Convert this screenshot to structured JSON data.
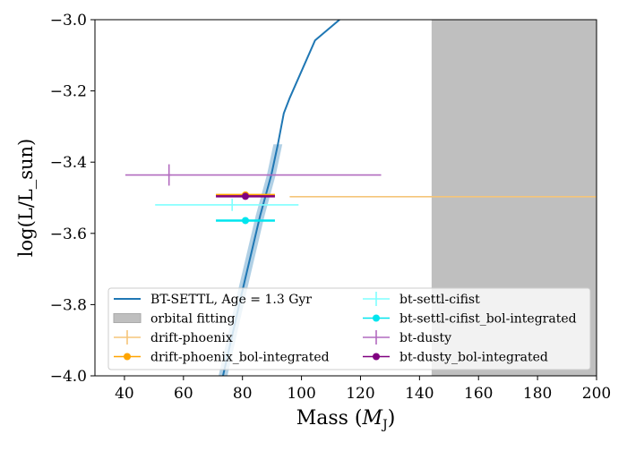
{
  "chart_data": {
    "type": "scatter",
    "title": "",
    "xlabel": "Mass (M_J)",
    "ylabel": "log(L/L_sun)",
    "xlim": [
      30,
      200
    ],
    "ylim": [
      -4.0,
      -3.0
    ],
    "xticks": [
      40,
      60,
      80,
      100,
      120,
      140,
      160,
      180,
      200
    ],
    "yticks": [
      -4.0,
      -3.8,
      -3.6,
      -3.4,
      -3.2,
      -3.0
    ],
    "xtick_labels": [
      "40",
      "60",
      "80",
      "100",
      "120",
      "140",
      "160",
      "180",
      "200"
    ],
    "ytick_labels": [
      "−4.0",
      "−3.8",
      "−3.6",
      "−3.4",
      "−3.2",
      "−3.0"
    ],
    "legend_placement": "lower-center",
    "model_curve": {
      "name": "BT-SETTL, Age = 1.3 Gyr",
      "color": "#1f77b4",
      "mass": [
        73.4,
        80,
        86,
        89.8,
        92,
        94.0,
        96,
        104.6,
        112.9
      ],
      "logL": [
        -4.0,
        -3.76,
        -3.55,
        -3.435,
        -3.35,
        -3.263,
        -3.22,
        -3.058,
        -3.0
      ],
      "band_halfwidth_mass": 1.5
    },
    "orbital_fitting": {
      "name": "orbital fitting",
      "color": "#bfbfbf",
      "mass_range": [
        144.1,
        200
      ]
    },
    "series": [
      {
        "name": "drift-phoenix",
        "color": "#f5c57a",
        "marker": "+",
        "mass": 148,
        "mass_err": [
          52,
          52
        ],
        "logL": -3.497,
        "logL_err": 0.0
      },
      {
        "name": "drift-phoenix_bol-integrated",
        "color": "#ffa500",
        "marker": "o",
        "mass": 81,
        "mass_err": [
          10,
          10
        ],
        "logL": -3.492,
        "logL_err": 0.0
      },
      {
        "name": "bt-settl-cifist",
        "color": "#7fffff",
        "marker": "+",
        "mass": 76.5,
        "mass_err": [
          26.1,
          22.5
        ],
        "logL": -3.52,
        "logL_err": 0.017
      },
      {
        "name": "bt-settl-cifist_bol-integrated",
        "color": "#00e5ee",
        "marker": "o",
        "mass": 81,
        "mass_err": [
          10,
          10
        ],
        "logL": -3.564,
        "logL_err": 0.0
      },
      {
        "name": "bt-dusty",
        "color": "#b26bbf",
        "marker": "+",
        "mass": 55.1,
        "mass_err": [
          14.8,
          71.9
        ],
        "logL": -3.436,
        "logL_err": 0.03
      },
      {
        "name": "bt-dusty_bol-integrated",
        "color": "#800080",
        "marker": "o",
        "mass": 81,
        "mass_err": [
          10,
          10
        ],
        "logL": -3.496,
        "logL_err": 0.0
      }
    ]
  }
}
